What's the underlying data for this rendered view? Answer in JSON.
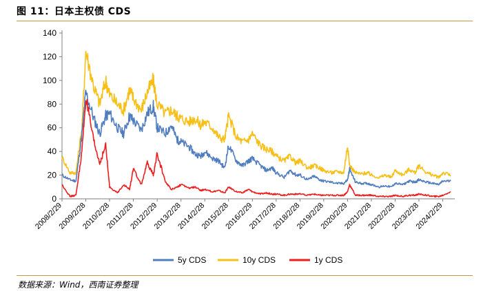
{
  "header": {
    "title": "图 11：日本主权债 CDS"
  },
  "footer": {
    "source": "数据来源：Wind，西南证券整理"
  },
  "colors": {
    "rule": "#c89640",
    "series_5y": "#4f7dbf",
    "series_10y": "#f7c019",
    "series_1y": "#ee1c1c"
  },
  "chart_data": {
    "type": "line",
    "title": "",
    "xlabel": "",
    "ylabel": "",
    "ylim": [
      0,
      140
    ],
    "yticks": [
      0,
      20,
      40,
      60,
      80,
      100,
      120,
      140
    ],
    "xticks": [
      "2008/2/29",
      "2009/2/28",
      "2010/2/28",
      "2011/2/28",
      "2012/2/29",
      "2013/2/28",
      "2014/2/28",
      "2015/2/28",
      "2016/2/29",
      "2017/2/28",
      "2018/2/28",
      "2019/2/28",
      "2020/2/29",
      "2021/2/28",
      "2022/2/28",
      "2023/2/28",
      "2024/2/29"
    ],
    "grid": false,
    "legend": "bottom",
    "series": [
      {
        "name": "5y CDS",
        "x": [
          "2008/2/29",
          "2008/6/30",
          "2008/9/30",
          "2008/12/31",
          "2009/2/28",
          "2009/6/30",
          "2009/9/30",
          "2009/12/31",
          "2010/2/28",
          "2010/6/30",
          "2010/9/30",
          "2010/12/31",
          "2011/2/28",
          "2011/6/30",
          "2011/9/30",
          "2011/12/31",
          "2012/2/29",
          "2012/6/30",
          "2012/9/30",
          "2012/12/31",
          "2013/2/28",
          "2013/6/30",
          "2013/9/30",
          "2013/12/31",
          "2014/2/28",
          "2014/6/30",
          "2014/9/30",
          "2014/12/31",
          "2015/2/28",
          "2015/6/30",
          "2015/9/30",
          "2015/12/31",
          "2016/2/29",
          "2016/6/30",
          "2016/9/30",
          "2016/12/31",
          "2017/2/28",
          "2017/6/30",
          "2017/9/30",
          "2017/12/31",
          "2018/2/28",
          "2018/6/30",
          "2018/9/30",
          "2018/12/31",
          "2019/2/28",
          "2019/6/30",
          "2019/9/30",
          "2019/12/31",
          "2020/2/29",
          "2020/3/31",
          "2020/6/30",
          "2020/9/30",
          "2020/12/31",
          "2021/2/28",
          "2021/6/30",
          "2021/9/30",
          "2021/12/31",
          "2022/2/28",
          "2022/6/30",
          "2022/9/30",
          "2022/12/31",
          "2023/2/28",
          "2023/6/30",
          "2023/9/30",
          "2023/12/31",
          "2024/2/29",
          "2024/6/30"
        ],
        "values": [
          20,
          16,
          15,
          55,
          90,
          68,
          55,
          70,
          72,
          60,
          55,
          70,
          66,
          58,
          72,
          78,
          60,
          55,
          62,
          50,
          48,
          44,
          38,
          36,
          40,
          34,
          32,
          26,
          45,
          32,
          28,
          32,
          34,
          28,
          24,
          26,
          22,
          18,
          24,
          20,
          20,
          16,
          19,
          16,
          15,
          14,
          13,
          13,
          16,
          25,
          14,
          13,
          13,
          12,
          10,
          11,
          10,
          13,
          12,
          15,
          14,
          16,
          14,
          13,
          12,
          15,
          15
        ]
      },
      {
        "name": "10y CDS",
        "x": [
          "2008/2/29",
          "2008/6/30",
          "2008/9/30",
          "2008/12/31",
          "2009/2/28",
          "2009/6/30",
          "2009/9/30",
          "2009/12/31",
          "2010/2/28",
          "2010/6/30",
          "2010/9/30",
          "2010/12/31",
          "2011/2/28",
          "2011/6/30",
          "2011/9/30",
          "2011/12/31",
          "2012/2/29",
          "2012/6/30",
          "2012/9/30",
          "2012/12/31",
          "2013/2/28",
          "2013/6/30",
          "2013/9/30",
          "2013/12/31",
          "2014/2/28",
          "2014/6/30",
          "2014/9/30",
          "2014/12/31",
          "2015/2/28",
          "2015/6/30",
          "2015/9/30",
          "2015/12/31",
          "2016/2/29",
          "2016/6/30",
          "2016/9/30",
          "2016/12/31",
          "2017/2/28",
          "2017/6/30",
          "2017/9/30",
          "2017/12/31",
          "2018/2/28",
          "2018/6/30",
          "2018/9/30",
          "2018/12/31",
          "2019/2/28",
          "2019/6/30",
          "2019/9/30",
          "2019/12/31",
          "2020/2/29",
          "2020/3/31",
          "2020/6/30",
          "2020/9/30",
          "2020/12/31",
          "2021/2/28",
          "2021/6/30",
          "2021/9/30",
          "2021/12/31",
          "2022/2/28",
          "2022/6/30",
          "2022/9/30",
          "2022/12/31",
          "2023/2/28",
          "2023/6/30",
          "2023/9/30",
          "2023/12/31",
          "2024/2/29",
          "2024/6/30"
        ],
        "values": [
          35,
          22,
          22,
          60,
          125,
          95,
          80,
          100,
          88,
          80,
          75,
          92,
          85,
          75,
          90,
          100,
          80,
          72,
          75,
          70,
          68,
          65,
          68,
          62,
          65,
          60,
          52,
          50,
          70,
          52,
          48,
          50,
          55,
          45,
          42,
          40,
          36,
          32,
          36,
          30,
          32,
          26,
          28,
          26,
          24,
          22,
          23,
          22,
          45,
          28,
          22,
          21,
          22,
          20,
          18,
          20,
          18,
          24,
          20,
          25,
          22,
          28,
          22,
          20,
          18,
          22,
          20
        ]
      },
      {
        "name": "1y CDS",
        "x": [
          "2008/2/29",
          "2008/6/30",
          "2008/9/30",
          "2008/12/31",
          "2009/2/28",
          "2009/6/30",
          "2009/9/30",
          "2009/12/31",
          "2010/2/28",
          "2010/6/30",
          "2010/9/30",
          "2010/12/31",
          "2011/2/28",
          "2011/6/30",
          "2011/9/30",
          "2011/12/31",
          "2012/2/29",
          "2012/6/30",
          "2012/9/30",
          "2012/12/31",
          "2013/2/28",
          "2013/6/30",
          "2013/9/30",
          "2013/12/31",
          "2014/2/28",
          "2014/6/30",
          "2014/9/30",
          "2014/12/31",
          "2015/2/28",
          "2015/6/30",
          "2015/9/30",
          "2015/12/31",
          "2016/2/29",
          "2016/6/30",
          "2016/9/30",
          "2016/12/31",
          "2017/2/28",
          "2017/6/30",
          "2017/9/30",
          "2017/12/31",
          "2018/2/28",
          "2018/6/30",
          "2018/9/30",
          "2018/12/31",
          "2019/2/28",
          "2019/6/30",
          "2019/9/30",
          "2019/12/31",
          "2020/2/29",
          "2020/3/31",
          "2020/6/30",
          "2020/9/30",
          "2020/12/31",
          "2021/2/28",
          "2021/6/30",
          "2021/9/30",
          "2021/12/31",
          "2022/2/28",
          "2022/6/30",
          "2022/9/30",
          "2022/12/31",
          "2023/2/28",
          "2023/6/30",
          "2023/9/30",
          "2023/12/31",
          "2024/2/29",
          "2024/6/30"
        ],
        "values": [
          12,
          2,
          3,
          40,
          85,
          48,
          30,
          45,
          10,
          5,
          12,
          8,
          25,
          12,
          30,
          20,
          38,
          15,
          8,
          10,
          12,
          9,
          10,
          7,
          8,
          6,
          7,
          5,
          10,
          6,
          5,
          8,
          6,
          4,
          5,
          4,
          4,
          3,
          4,
          4,
          4,
          3,
          4,
          3,
          3,
          3,
          3,
          3,
          6,
          12,
          3,
          3,
          3,
          3,
          2,
          2,
          2,
          3,
          2,
          3,
          3,
          4,
          3,
          2,
          2,
          3,
          6
        ]
      }
    ]
  }
}
